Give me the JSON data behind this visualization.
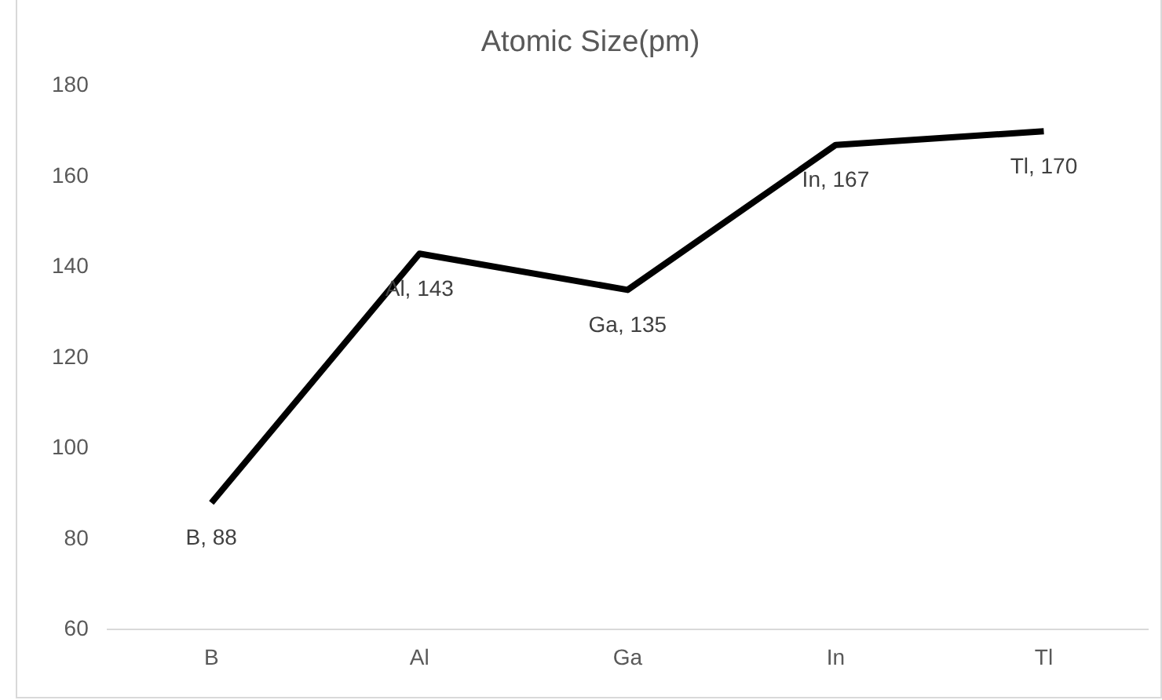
{
  "chart_data": {
    "type": "line",
    "title": "Atomic Size(pm)",
    "categories": [
      "B",
      "Al",
      "Ga",
      "In",
      "Tl"
    ],
    "series": [
      {
        "color": "#000000",
        "values": [
          88,
          143,
          135,
          167,
          170
        ],
        "value_labels": [
          "B, 88",
          "Al, 143",
          "Ga, 135",
          "In, 167",
          "Tl, 170"
        ]
      }
    ],
    "ylim": [
      60,
      180
    ],
    "yticks": [
      60,
      80,
      100,
      120,
      140,
      160,
      180
    ],
    "grid": false,
    "legend": false,
    "marker": "none",
    "line_style": "solid"
  }
}
